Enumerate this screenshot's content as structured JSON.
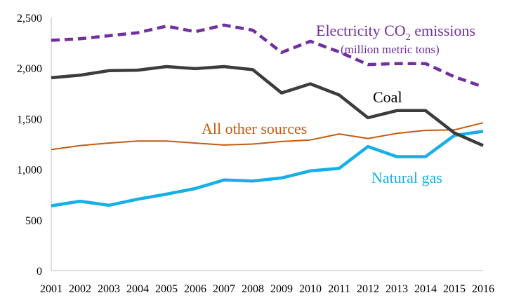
{
  "chart_data": {
    "type": "line",
    "title": "Electricity CO2 emissions",
    "title_parts": {
      "prefix": "Electricity CO",
      "subscript": "2",
      "suffix": " emissions"
    },
    "subtitle": "(million metric tons)",
    "xlabel": "",
    "ylabel": "",
    "ylim": [
      0,
      2500
    ],
    "yticks": [
      0,
      500,
      1000,
      1500,
      2000,
      2500
    ],
    "ytick_labels": [
      "0",
      "500",
      "1,000",
      "1,500",
      "2,000",
      "2,500"
    ],
    "grid": false,
    "x": [
      "2001",
      "2002",
      "2003",
      "2004",
      "2005",
      "2006",
      "2007",
      "2008",
      "2009",
      "2010",
      "2011",
      "2012",
      "2013",
      "2014",
      "2015",
      "2016"
    ],
    "series": [
      {
        "name": "Electricity CO2 emissions",
        "color": "#7030A0",
        "style": "dashed",
        "values": [
          2275,
          2290,
          2320,
          2350,
          2415,
          2360,
          2425,
          2375,
          2155,
          2265,
          2160,
          2035,
          2045,
          2045,
          1915,
          1815
        ]
      },
      {
        "name": "Coal",
        "color": "#3C3C3C",
        "style": "solid",
        "values": [
          1905,
          1930,
          1975,
          1980,
          2015,
          1995,
          2015,
          1985,
          1755,
          1845,
          1735,
          1510,
          1580,
          1580,
          1360,
          1235
        ]
      },
      {
        "name": "All other sources",
        "color": "#C55A11",
        "style": "thin",
        "values": [
          1195,
          1235,
          1260,
          1280,
          1280,
          1260,
          1240,
          1250,
          1275,
          1290,
          1350,
          1305,
          1355,
          1385,
          1390,
          1460
        ]
      },
      {
        "name": "Natural gas",
        "color": "#17B0E6",
        "style": "solid",
        "values": [
          640,
          685,
          645,
          705,
          755,
          810,
          895,
          885,
          915,
          985,
          1010,
          1225,
          1125,
          1125,
          1335,
          1375
        ]
      }
    ],
    "annotations": {
      "coal": "Coal",
      "other": "All other sources",
      "gas": "Natural gas"
    }
  }
}
